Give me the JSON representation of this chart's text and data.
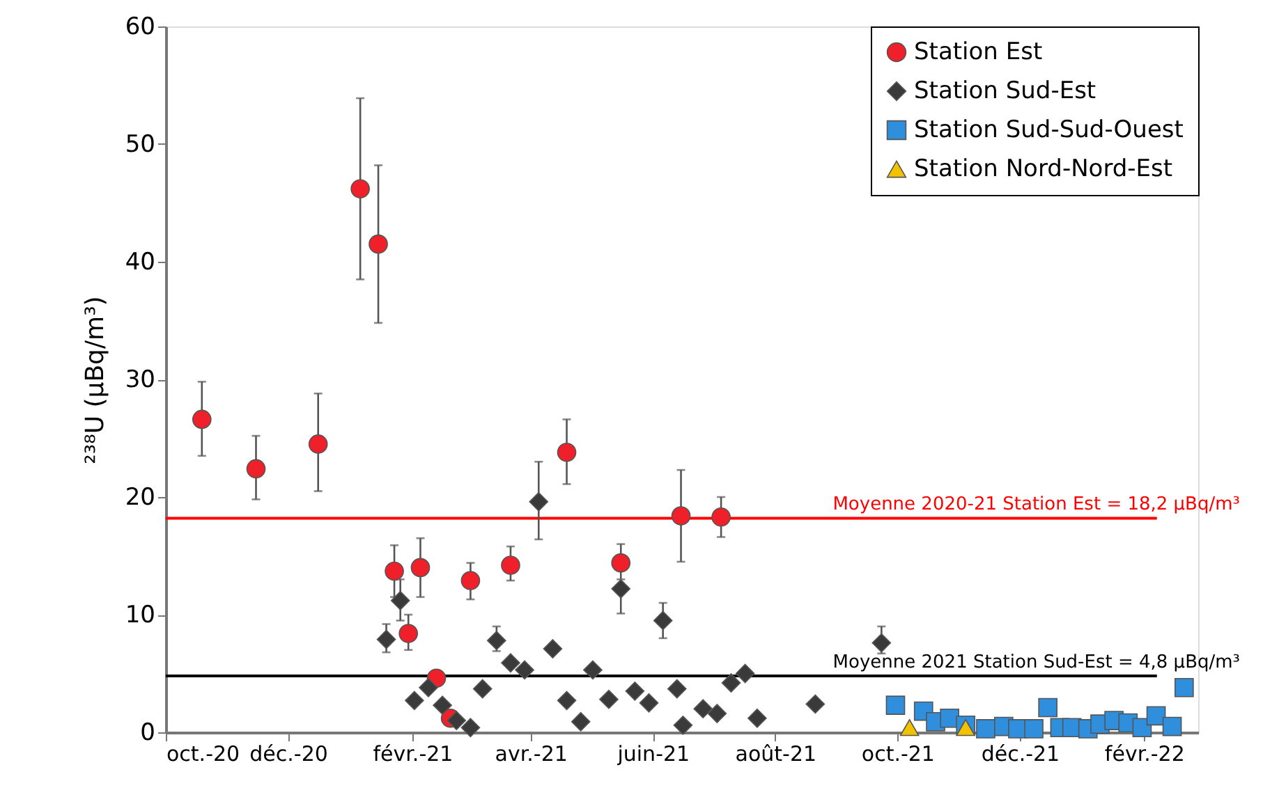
{
  "chart_data": {
    "type": "scatter",
    "ylabel": "²³⁸U (µBq/m³)",
    "xlim": [
      "2020-10-01",
      "2022-02-28"
    ],
    "xticks": [
      {
        "value": "2020-10-01",
        "label": "oct.-20"
      },
      {
        "value": "2020-12-01",
        "label": "déc.-20"
      },
      {
        "value": "2021-02-01",
        "label": "févr.-21"
      },
      {
        "value": "2021-04-01",
        "label": "avr.-21"
      },
      {
        "value": "2021-06-01",
        "label": "juin-21"
      },
      {
        "value": "2021-08-01",
        "label": "août-21"
      },
      {
        "value": "2021-10-01",
        "label": "oct.-21"
      },
      {
        "value": "2021-12-01",
        "label": "déc.-21"
      },
      {
        "value": "2022-02-01",
        "label": "févr.-22"
      }
    ],
    "ylim": [
      0,
      60
    ],
    "yticks": [
      0,
      10,
      20,
      30,
      40,
      50,
      60
    ],
    "grid": false,
    "legend": "top right",
    "series": [
      {
        "name": "Station Est",
        "color": "#f0202a",
        "marker": "circle",
        "x": [
          "2020-10-19",
          "2020-11-15",
          "2020-12-16",
          "2021-01-06",
          "2021-01-15",
          "2021-01-23",
          "2021-01-30",
          "2021-02-05",
          "2021-02-13",
          "2021-02-20",
          "2021-03-02",
          "2021-03-22",
          "2021-04-19",
          "2021-05-16",
          "2021-06-15",
          "2021-07-05"
        ],
        "values": [
          26.6,
          22.4,
          24.5,
          46.2,
          41.5,
          13.7,
          8.4,
          14.0,
          4.6,
          1.2,
          12.9,
          14.2,
          23.8,
          14.4,
          18.4,
          18.3
        ],
        "errors": [
          [
            23.5,
            29.8
          ],
          [
            19.8,
            25.2
          ],
          [
            20.5,
            28.8
          ],
          [
            38.5,
            53.9
          ],
          [
            34.8,
            48.2
          ],
          [
            11.5,
            15.9
          ],
          [
            7.0,
            10.0
          ],
          [
            11.5,
            16.5
          ],
          null,
          null,
          [
            11.3,
            14.4
          ],
          [
            12.9,
            15.8
          ],
          [
            21.1,
            26.6
          ],
          [
            13.0,
            16.0
          ],
          [
            14.5,
            22.3
          ],
          [
            16.6,
            20.0
          ]
        ]
      },
      {
        "name": "Station Sud-Est",
        "color": "#3a3a3a",
        "marker": "diamond",
        "x": [
          "2021-01-19",
          "2021-01-26",
          "2021-02-02",
          "2021-02-09",
          "2021-02-16",
          "2021-02-23",
          "2021-03-02",
          "2021-03-08",
          "2021-03-15",
          "2021-03-22",
          "2021-03-29",
          "2021-04-05",
          "2021-04-12",
          "2021-04-19",
          "2021-04-26",
          "2021-05-02",
          "2021-05-10",
          "2021-05-16",
          "2021-05-23",
          "2021-05-30",
          "2021-06-06",
          "2021-06-13",
          "2021-06-16",
          "2021-06-26",
          "2021-07-03",
          "2021-07-10",
          "2021-07-17",
          "2021-07-23",
          "2021-08-21",
          "2021-09-23"
        ],
        "values": [
          7.9,
          11.2,
          2.7,
          3.8,
          2.3,
          1.0,
          0.4,
          3.7,
          7.8,
          5.9,
          5.3,
          19.6,
          7.1,
          2.7,
          0.9,
          5.3,
          2.8,
          12.2,
          3.5,
          2.5,
          9.5,
          3.7,
          0.6,
          2.0,
          1.6,
          4.2,
          5.0,
          1.2,
          2.4,
          7.6
        ],
        "errors": [
          [
            6.8,
            9.2
          ],
          [
            9.5,
            13.0
          ],
          null,
          null,
          null,
          null,
          null,
          null,
          [
            6.9,
            9.0
          ],
          null,
          null,
          [
            16.4,
            23.0
          ],
          null,
          null,
          null,
          null,
          null,
          [
            10.1,
            12.2
          ],
          null,
          null,
          [
            8.0,
            11.0
          ],
          null,
          null,
          null,
          null,
          null,
          null,
          null,
          null,
          [
            6.7,
            9.0
          ]
        ]
      },
      {
        "name": "Station Sud-Sud-Ouest",
        "color": "#2f8fdc",
        "marker": "square",
        "x": [
          "2021-09-30",
          "2021-10-14",
          "2021-10-20",
          "2021-10-27",
          "2021-11-04",
          "2021-11-14",
          "2021-11-23",
          "2021-11-30",
          "2021-12-08",
          "2021-12-15",
          "2021-12-21",
          "2021-12-27",
          "2022-01-04",
          "2022-01-10",
          "2022-01-17",
          "2022-01-24",
          "2022-01-31",
          "2022-02-07",
          "2022-02-15",
          "2022-02-21"
        ],
        "values": [
          2.3,
          1.8,
          0.9,
          1.2,
          0.6,
          0.3,
          0.5,
          0.3,
          0.3,
          2.1,
          0.4,
          0.4,
          0.3,
          0.7,
          1.0,
          0.8,
          0.4,
          1.4,
          0.5,
          3.8
        ]
      },
      {
        "name": "Station Nord-Nord-Est",
        "color": "#f2c200",
        "marker": "triangle",
        "x": [
          "2021-10-07",
          "2021-11-04"
        ],
        "values": [
          0.4,
          0.4
        ]
      }
    ],
    "ref_lines": [
      {
        "axis": "y",
        "value": 18.2,
        "label": "Moyenne 2020-21 Station Est = 18,2 µBq/m³",
        "color": "#ff0000"
      },
      {
        "axis": "y",
        "value": 4.8,
        "label": "Moyenne 2021 Station Sud-Est = 4,8 µBq/m³",
        "color": "#000000"
      }
    ]
  }
}
